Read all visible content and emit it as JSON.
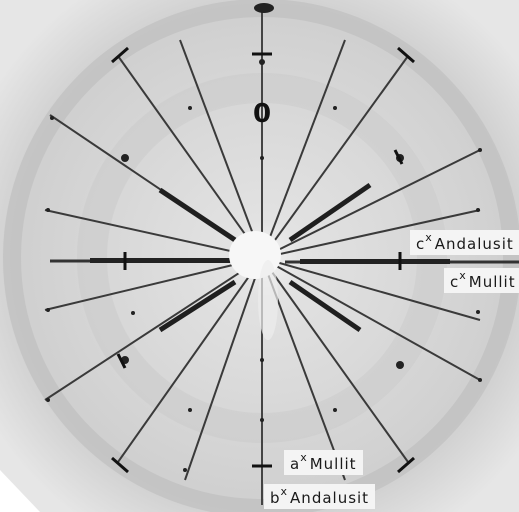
{
  "image": {
    "description": "X-ray diffraction precession photograph, greyscale, radial streaks from center",
    "colors": {
      "background": "#d9d9d9",
      "ink": "#1a1a1a",
      "label_bg": "#f4f4f4"
    }
  },
  "labels": {
    "c_andalusit": {
      "sup": "x",
      "text": "Andalusit"
    },
    "c_mullit": {
      "sup": "x",
      "text": "Mullit"
    },
    "a_mullit": {
      "sup": "x",
      "text": "Mullit"
    },
    "b_andalusit": {
      "sup": "x",
      "text": "Andalusit"
    },
    "c_andalusit_prefix": "c",
    "c_mullit_prefix": "c",
    "a_mullit_prefix": "a",
    "b_andalusit_prefix": "b",
    "origin_mark": "0"
  }
}
